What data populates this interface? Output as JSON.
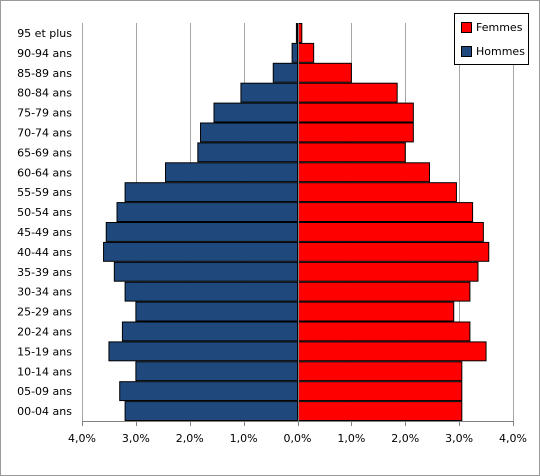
{
  "chart_data": {
    "type": "bar",
    "orientation": "horizontal",
    "layout": "population-pyramid",
    "categories": [
      "00-04 ans",
      "05-09 ans",
      "10-14 ans",
      "15-19 ans",
      "20-24 ans",
      "25-29 ans",
      "30-34 ans",
      "35-39 ans",
      "40-44 ans",
      "45-49 ans",
      "50-54 ans",
      "55-59 ans",
      "60-64 ans",
      "65-69 ans",
      "70-74 ans",
      "75-79 ans",
      "80-84 ans",
      "85-89 ans",
      "90-94 ans",
      "95 et plus"
    ],
    "series": [
      {
        "name": "Hommes",
        "side": "left",
        "color": "#1F497D",
        "values": [
          3.2,
          3.3,
          3.0,
          3.5,
          3.25,
          3.0,
          3.2,
          3.4,
          3.6,
          3.55,
          3.35,
          3.2,
          2.45,
          1.85,
          1.8,
          1.55,
          1.05,
          0.45,
          0.1,
          0.02
        ]
      },
      {
        "name": "Femmes",
        "side": "right",
        "color": "#FF0000",
        "values": [
          3.05,
          3.05,
          3.05,
          3.5,
          3.2,
          2.9,
          3.2,
          3.35,
          3.55,
          3.45,
          3.25,
          2.95,
          2.45,
          2.0,
          2.15,
          2.15,
          1.85,
          1.0,
          0.3,
          0.08
        ]
      }
    ],
    "xlim": [
      -4,
      4
    ],
    "xticks": [
      -4,
      -3,
      -2,
      -1,
      0,
      1,
      2,
      3,
      4
    ],
    "xtick_labels": [
      "4,0%",
      "3,0%",
      "2,0%",
      "1,0%",
      "0,0%",
      "1,0%",
      "2,0%",
      "3,0%",
      "4,0%"
    ],
    "grid": "vertical",
    "legend": {
      "position": "top-right",
      "entries": [
        "Femmes",
        "Hommes"
      ]
    }
  }
}
